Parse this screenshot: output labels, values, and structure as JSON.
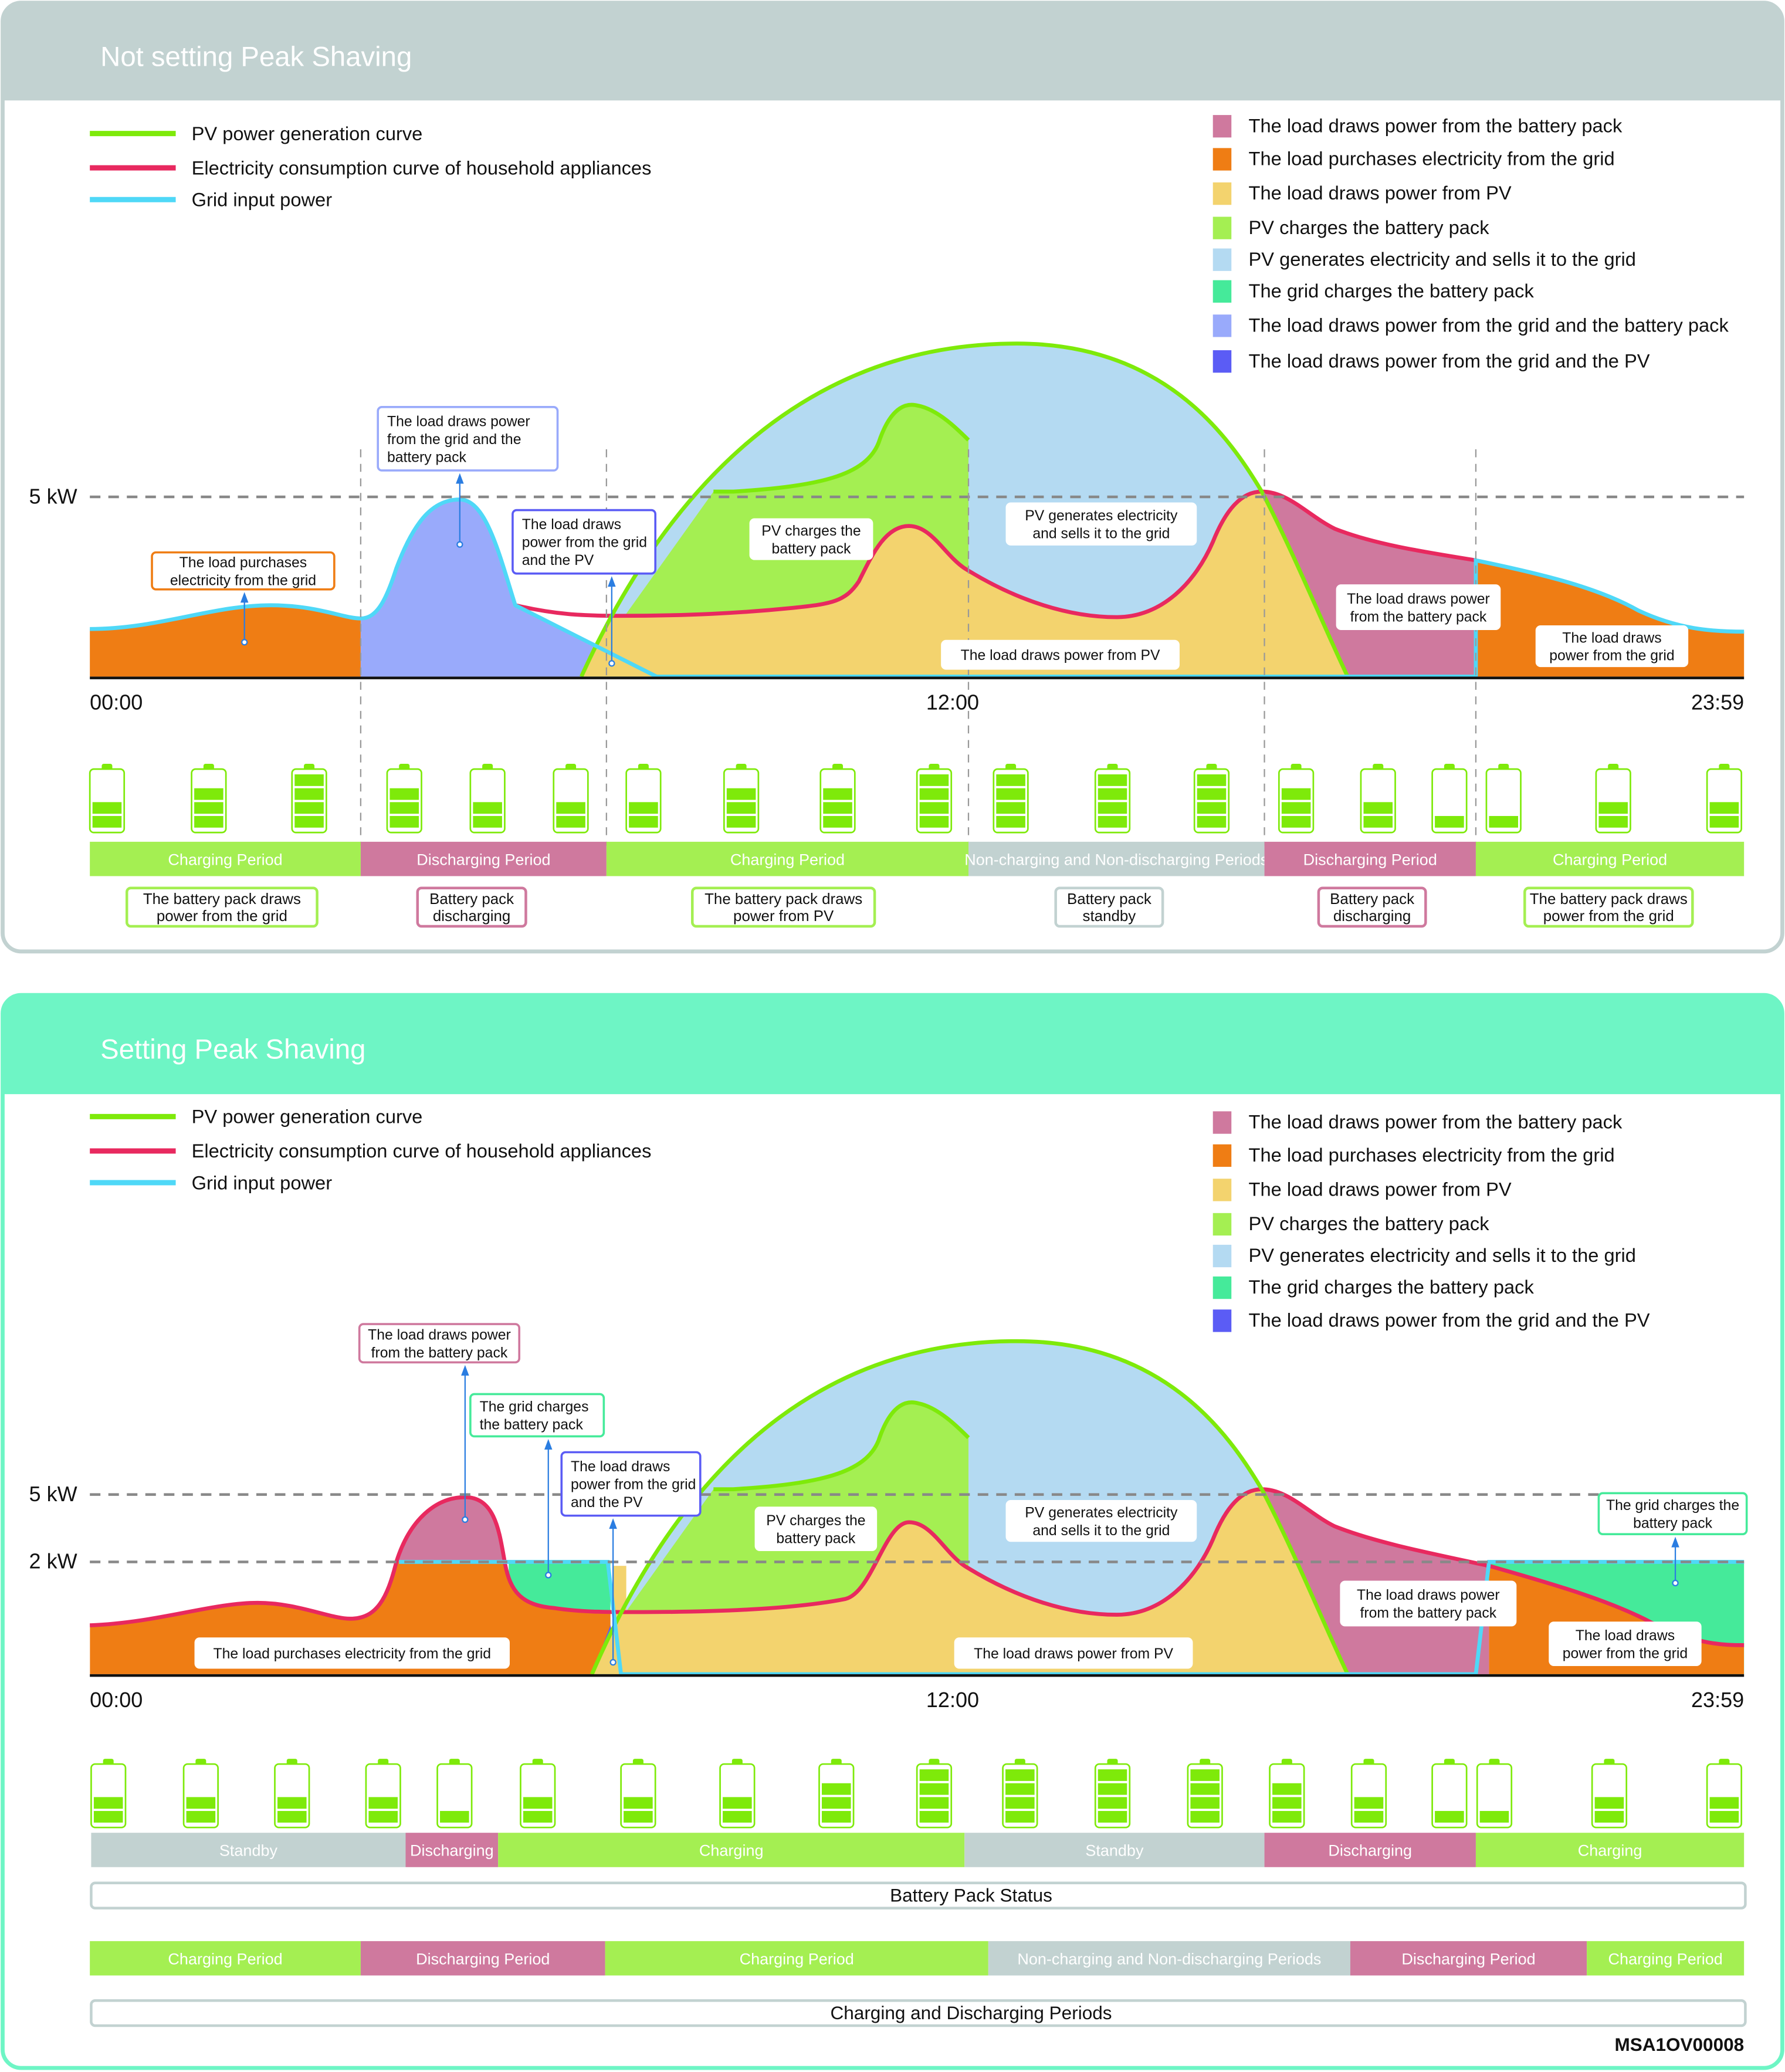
{
  "colors": {
    "pv_curve": "#7eea0a",
    "consumption_curve": "#e8295f",
    "grid_input": "#4fd8f7",
    "battery_to_load": "#cf799e",
    "grid_to_load": "#ef7d14",
    "pv_to_load": "#f3d36e",
    "pv_to_battery": "#a4ef52",
    "pv_to_grid": "#b4daf2",
    "grid_to_battery": "#45ea9a",
    "grid_battery_to_load": "#99aafb",
    "grid_pv_to_load": "#5b5cf5",
    "standby": "#c2d2d1",
    "top_header": "#c2d2d1",
    "bottom_header": "#6ef5c5"
  },
  "panels": [
    {
      "title": "Not setting Peak Shaving",
      "legend_lines": [
        {
          "label": "PV power generation curve",
          "color": "#7eea0a"
        },
        {
          "label": "Electricity consumption curve of household appliances",
          "color": "#e8295f"
        },
        {
          "label": "Grid input power",
          "color": "#4fd8f7"
        }
      ],
      "legend_areas": [
        {
          "label": "The load draws power from the battery pack",
          "color": "#cf799e"
        },
        {
          "label": "The load purchases electricity from the grid",
          "color": "#ef7d14"
        },
        {
          "label": "The load draws power from PV",
          "color": "#f3d36e"
        },
        {
          "label": "PV charges the battery pack",
          "color": "#a4ef52"
        },
        {
          "label": "PV generates electricity and sells it to the grid",
          "color": "#b4daf2"
        },
        {
          "label": "The grid charges the battery pack",
          "color": "#45ea9a"
        },
        {
          "label": "The load draws power from the grid and the battery pack",
          "color": "#99aafb"
        },
        {
          "label": "The load draws power from the grid and the PV",
          "color": "#5b5cf5"
        }
      ],
      "y_labels": [
        "5 kW"
      ],
      "time_labels": [
        "00:00",
        "12:00",
        "23:59"
      ],
      "annotations": [
        {
          "lines": [
            "The load purchases",
            "electricity from the grid"
          ]
        },
        {
          "lines": [
            "The load draws power",
            "from the grid and the",
            "battery pack"
          ]
        },
        {
          "lines": [
            "The load draws",
            "power from the grid",
            "and the PV"
          ]
        },
        {
          "lines": [
            "PV charges the",
            "battery pack"
          ]
        },
        {
          "lines": [
            "PV generates electricity",
            "and sells it to the grid"
          ]
        },
        {
          "lines": [
            "The load draws power from PV"
          ]
        },
        {
          "lines": [
            "The load draws power",
            "from the battery pack"
          ]
        },
        {
          "lines": [
            "The load draws",
            "power from the grid"
          ]
        }
      ],
      "battery_levels": [
        2,
        3,
        4,
        3,
        2,
        2,
        2,
        3,
        3,
        4,
        4,
        4,
        4,
        3,
        2,
        1,
        1,
        2,
        2
      ],
      "battery_segments": 4,
      "period_bar": [
        {
          "label": "Charging Period",
          "kind": "charging"
        },
        {
          "label": "Discharging Period",
          "kind": "discharging"
        },
        {
          "label": "Charging Period",
          "kind": "charging"
        },
        {
          "label": "Non-charging and Non-discharging Periods",
          "kind": "standby"
        },
        {
          "label": "Discharging Period",
          "kind": "discharging"
        },
        {
          "label": "Charging Period",
          "kind": "charging"
        }
      ],
      "period_notes": [
        {
          "lines": [
            "The battery pack draws",
            "power from the grid"
          ],
          "kind": "charging"
        },
        {
          "lines": [
            "Battery pack",
            "discharging"
          ],
          "kind": "discharging"
        },
        {
          "lines": [
            "The battery pack draws",
            "power from PV"
          ],
          "kind": "charging"
        },
        {
          "lines": [
            "Battery pack",
            "standby"
          ],
          "kind": "standby"
        },
        {
          "lines": [
            "Battery pack",
            "discharging"
          ],
          "kind": "discharging"
        },
        {
          "lines": [
            "The battery pack draws",
            "power from the grid"
          ],
          "kind": "charging"
        }
      ]
    },
    {
      "title": "Setting Peak Shaving",
      "legend_lines": [
        {
          "label": "PV power generation curve",
          "color": "#7eea0a"
        },
        {
          "label": "Electricity consumption curve of household appliances",
          "color": "#e8295f"
        },
        {
          "label": "Grid input power",
          "color": "#4fd8f7"
        }
      ],
      "legend_areas": [
        {
          "label": "The load draws power from the battery pack",
          "color": "#cf799e"
        },
        {
          "label": "The load purchases electricity from the grid",
          "color": "#ef7d14"
        },
        {
          "label": "The load draws power from PV",
          "color": "#f3d36e"
        },
        {
          "label": "PV charges the battery pack",
          "color": "#a4ef52"
        },
        {
          "label": "PV generates electricity and sells it to the grid",
          "color": "#b4daf2"
        },
        {
          "label": "The grid charges the battery pack",
          "color": "#45ea9a"
        },
        {
          "label": "The load draws power from the grid and the PV",
          "color": "#5b5cf5"
        }
      ],
      "y_labels": [
        "5 kW",
        "2 kW"
      ],
      "time_labels": [
        "00:00",
        "12:00",
        "23:59"
      ],
      "annotations": [
        {
          "lines": [
            "The load draws power",
            "from the battery pack"
          ]
        },
        {
          "lines": [
            "The grid charges",
            "the battery pack"
          ]
        },
        {
          "lines": [
            "The load draws",
            "power from the grid",
            "and the PV"
          ]
        },
        {
          "lines": [
            "PV charges the",
            "battery pack"
          ]
        },
        {
          "lines": [
            "PV generates electricity",
            "and sells it to the grid"
          ]
        },
        {
          "lines": [
            "The load purchases electricity from the grid"
          ]
        },
        {
          "lines": [
            "The load draws power from PV"
          ]
        },
        {
          "lines": [
            "The load draws power",
            "from the battery pack"
          ]
        },
        {
          "lines": [
            "The grid charges the",
            "battery pack"
          ]
        },
        {
          "lines": [
            "The load draws",
            "power from the grid"
          ]
        }
      ],
      "battery_levels": [
        2,
        2,
        2,
        2,
        1,
        2,
        2,
        2,
        3,
        4,
        4,
        4,
        4,
        3,
        2,
        1,
        1,
        2,
        2
      ],
      "battery_segments": 4,
      "status_bar": [
        {
          "label": "Standby",
          "kind": "standby"
        },
        {
          "label": "Discharging",
          "kind": "discharging"
        },
        {
          "label": "Charging",
          "kind": "charging"
        },
        {
          "label": "Standby",
          "kind": "standby"
        },
        {
          "label": "Discharging",
          "kind": "discharging"
        },
        {
          "label": "Charging",
          "kind": "charging"
        }
      ],
      "status_caption": "Battery Pack Status",
      "period_bar": [
        {
          "label": "Charging Period",
          "kind": "charging"
        },
        {
          "label": "Discharging Period",
          "kind": "discharging"
        },
        {
          "label": "Charging Period",
          "kind": "charging"
        },
        {
          "label": "Non-charging and Non-discharging Periods",
          "kind": "standby"
        },
        {
          "label": "Discharging Period",
          "kind": "discharging"
        },
        {
          "label": "Charging Period",
          "kind": "charging"
        }
      ],
      "period_caption": "Charging and Discharging Periods"
    }
  ],
  "figure_id": "MSA1OV00008"
}
